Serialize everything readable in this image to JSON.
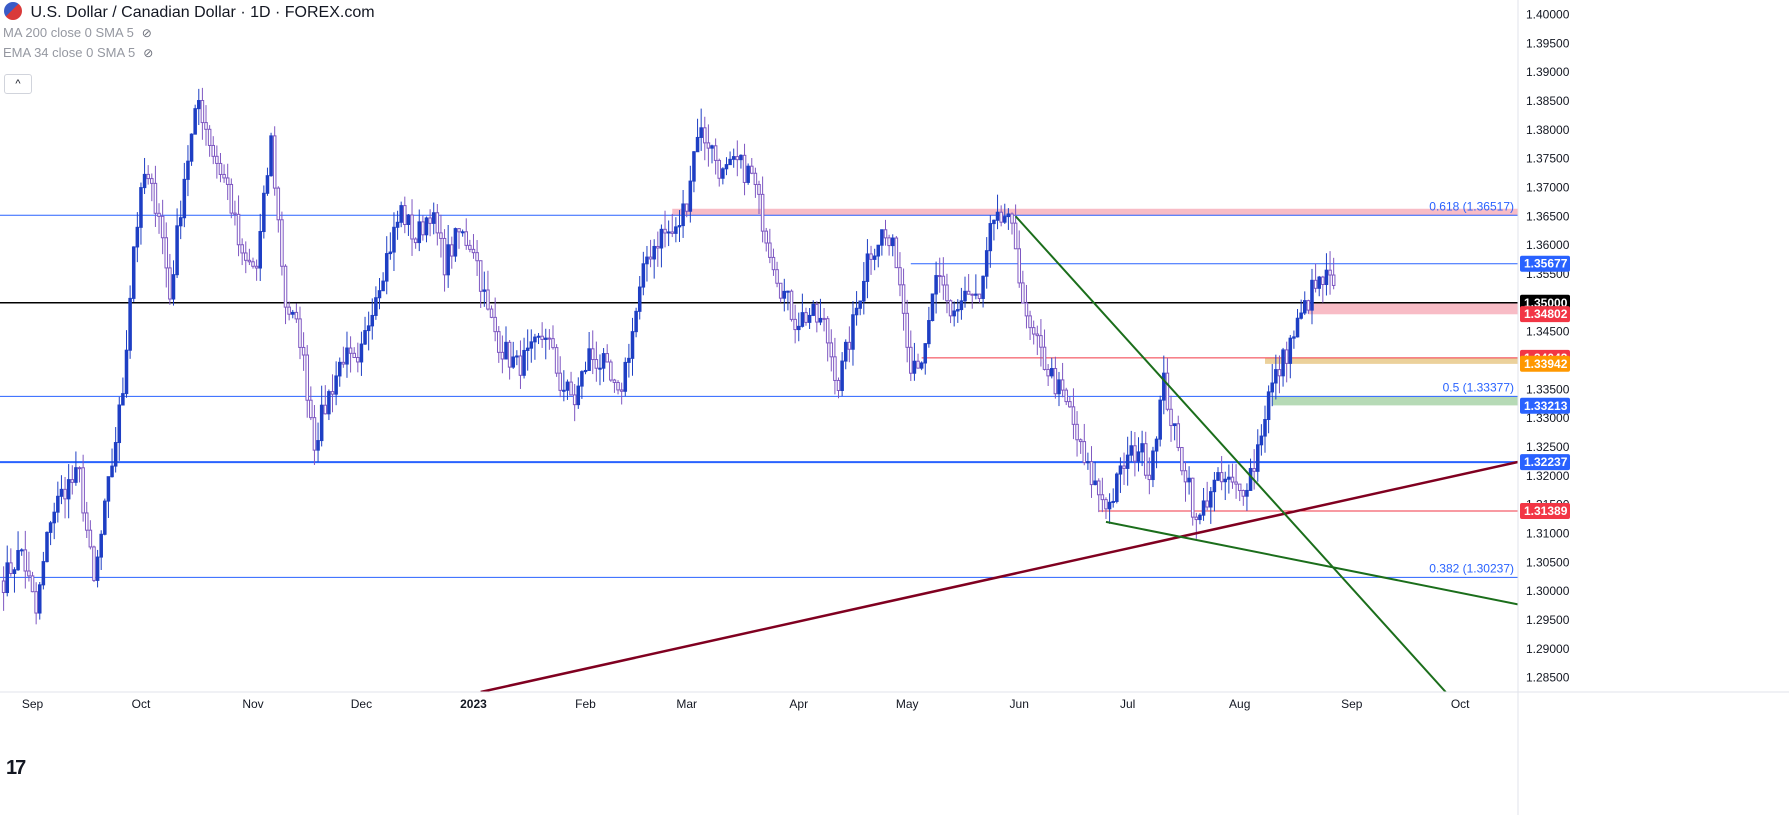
{
  "header": {
    "title": "U.S. Dollar / Canadian Dollar · 1D · FOREX.com",
    "indicators": [
      "MA 200 close 0 SMA 5",
      "EMA 34 close 0 SMA 5"
    ],
    "collapse_label": "^",
    "logo": "17"
  },
  "chart_data": {
    "type": "candlestick",
    "title": "U.S. Dollar / Canadian Dollar · 1D · FOREX.com",
    "ylim": [
      1.2825,
      1.4025
    ],
    "y_ticks": [
      "1.40000",
      "1.39500",
      "1.39000",
      "1.38500",
      "1.38000",
      "1.37500",
      "1.37000",
      "1.36500",
      "1.36000",
      "1.35500",
      "1.35000",
      "1.34500",
      "1.34000",
      "1.33500",
      "1.33000",
      "1.32500",
      "1.32000",
      "1.31500",
      "1.31000",
      "1.30500",
      "1.30000",
      "1.29500",
      "1.29000",
      "1.28500"
    ],
    "x_ticks": [
      {
        "label": "Sep",
        "day": 3
      },
      {
        "label": "Oct",
        "day": 33
      },
      {
        "label": "Nov",
        "day": 64
      },
      {
        "label": "Dec",
        "day": 94
      },
      {
        "label": "2023",
        "day": 125,
        "bold": true
      },
      {
        "label": "Feb",
        "day": 156
      },
      {
        "label": "Mar",
        "day": 184
      },
      {
        "label": "Apr",
        "day": 215
      },
      {
        "label": "May",
        "day": 245
      },
      {
        "label": "Jun",
        "day": 276
      },
      {
        "label": "Jul",
        "day": 306
      },
      {
        "label": "Aug",
        "day": 337
      },
      {
        "label": "Sep",
        "day": 368
      },
      {
        "label": "Oct",
        "day": 398
      }
    ],
    "x_domain": [
      -6,
      414
    ],
    "anchors": [
      {
        "day": -5,
        "price": 1.302
      },
      {
        "day": 0,
        "price": 1.307
      },
      {
        "day": 4,
        "price": 1.296
      },
      {
        "day": 8,
        "price": 1.313
      },
      {
        "day": 12,
        "price": 1.318
      },
      {
        "day": 16,
        "price": 1.32
      },
      {
        "day": 20,
        "price": 1.301
      },
      {
        "day": 24,
        "price": 1.318
      },
      {
        "day": 28,
        "price": 1.335
      },
      {
        "day": 31,
        "price": 1.36
      },
      {
        "day": 34,
        "price": 1.372
      },
      {
        "day": 38,
        "price": 1.366
      },
      {
        "day": 41,
        "price": 1.351
      },
      {
        "day": 45,
        "price": 1.372
      },
      {
        "day": 49,
        "price": 1.385
      },
      {
        "day": 53,
        "price": 1.376
      },
      {
        "day": 57,
        "price": 1.37
      },
      {
        "day": 61,
        "price": 1.357
      },
      {
        "day": 65,
        "price": 1.356
      },
      {
        "day": 69,
        "price": 1.378
      },
      {
        "day": 73,
        "price": 1.35
      },
      {
        "day": 77,
        "price": 1.344
      },
      {
        "day": 81,
        "price": 1.326
      },
      {
        "day": 85,
        "price": 1.334
      },
      {
        "day": 89,
        "price": 1.341
      },
      {
        "day": 93,
        "price": 1.338
      },
      {
        "day": 97,
        "price": 1.35
      },
      {
        "day": 101,
        "price": 1.358
      },
      {
        "day": 105,
        "price": 1.366
      },
      {
        "day": 109,
        "price": 1.361
      },
      {
        "day": 113,
        "price": 1.366
      },
      {
        "day": 117,
        "price": 1.357
      },
      {
        "day": 121,
        "price": 1.362
      },
      {
        "day": 125,
        "price": 1.36
      },
      {
        "day": 129,
        "price": 1.348
      },
      {
        "day": 133,
        "price": 1.342
      },
      {
        "day": 137,
        "price": 1.339
      },
      {
        "day": 141,
        "price": 1.341
      },
      {
        "day": 145,
        "price": 1.345
      },
      {
        "day": 149,
        "price": 1.336
      },
      {
        "day": 153,
        "price": 1.333
      },
      {
        "day": 157,
        "price": 1.341
      },
      {
        "day": 161,
        "price": 1.339
      },
      {
        "day": 165,
        "price": 1.333
      },
      {
        "day": 169,
        "price": 1.345
      },
      {
        "day": 173,
        "price": 1.358
      },
      {
        "day": 177,
        "price": 1.362
      },
      {
        "day": 181,
        "price": 1.362
      },
      {
        "day": 184,
        "price": 1.368
      },
      {
        "day": 187,
        "price": 1.38
      },
      {
        "day": 190,
        "price": 1.378
      },
      {
        "day": 194,
        "price": 1.372
      },
      {
        "day": 198,
        "price": 1.374
      },
      {
        "day": 202,
        "price": 1.372
      },
      {
        "day": 206,
        "price": 1.362
      },
      {
        "day": 210,
        "price": 1.353
      },
      {
        "day": 214,
        "price": 1.347
      },
      {
        "day": 218,
        "price": 1.348
      },
      {
        "day": 222,
        "price": 1.346
      },
      {
        "day": 226,
        "price": 1.336
      },
      {
        "day": 230,
        "price": 1.346
      },
      {
        "day": 234,
        "price": 1.358
      },
      {
        "day": 238,
        "price": 1.362
      },
      {
        "day": 242,
        "price": 1.358
      },
      {
        "day": 246,
        "price": 1.34
      },
      {
        "day": 250,
        "price": 1.341
      },
      {
        "day": 253,
        "price": 1.355
      },
      {
        "day": 257,
        "price": 1.347
      },
      {
        "day": 261,
        "price": 1.352
      },
      {
        "day": 265,
        "price": 1.35
      },
      {
        "day": 268,
        "price": 1.362
      },
      {
        "day": 272,
        "price": 1.365
      },
      {
        "day": 275,
        "price": 1.36
      },
      {
        "day": 278,
        "price": 1.346
      },
      {
        "day": 282,
        "price": 1.341
      },
      {
        "day": 286,
        "price": 1.336
      },
      {
        "day": 290,
        "price": 1.331
      },
      {
        "day": 294,
        "price": 1.322
      },
      {
        "day": 298,
        "price": 1.317
      },
      {
        "day": 301,
        "price": 1.315
      },
      {
        "day": 305,
        "price": 1.322
      },
      {
        "day": 309,
        "price": 1.325
      },
      {
        "day": 312,
        "price": 1.321
      },
      {
        "day": 316,
        "price": 1.336
      },
      {
        "day": 320,
        "price": 1.324
      },
      {
        "day": 323,
        "price": 1.319
      },
      {
        "day": 325,
        "price": 1.311
      },
      {
        "day": 329,
        "price": 1.318
      },
      {
        "day": 333,
        "price": 1.319
      },
      {
        "day": 337,
        "price": 1.317
      },
      {
        "day": 341,
        "price": 1.322
      },
      {
        "day": 345,
        "price": 1.334
      },
      {
        "day": 349,
        "price": 1.34
      },
      {
        "day": 353,
        "price": 1.346
      },
      {
        "day": 357,
        "price": 1.352
      },
      {
        "day": 361,
        "price": 1.354
      },
      {
        "day": 363,
        "price": 1.353
      }
    ],
    "horizontal_lines": [
      {
        "price": 1.36517,
        "color": "#2962ff",
        "width": 1,
        "from": "start"
      },
      {
        "price": 1.35677,
        "color": "#2962ff",
        "width": 1,
        "from_day": 246
      },
      {
        "price": 1.35,
        "color": "#000000",
        "width": 1.5,
        "from": "start"
      },
      {
        "price": 1.33377,
        "color": "#2962ff",
        "width": 1,
        "from": "start"
      },
      {
        "price": 1.32237,
        "color": "#2962ff",
        "width": 2,
        "from": "start"
      },
      {
        "price": 1.30237,
        "color": "#2962ff",
        "width": 1,
        "from": "start"
      },
      {
        "price": 1.34043,
        "color": "#f23645",
        "width": 1,
        "from_day": 249
      },
      {
        "price": 1.31389,
        "color": "#f23645",
        "width": 1,
        "from_day": 298
      }
    ],
    "zones": [
      {
        "top": 1.3663,
        "bottom": 1.3651,
        "from_day": 180,
        "color": "#f7b0bc"
      },
      {
        "top": 1.3499,
        "bottom": 1.348,
        "from_day": 356,
        "color": "#f7b0bc"
      },
      {
        "top": 1.3404,
        "bottom": 1.3394,
        "from_day": 344,
        "color": "#e7c989"
      },
      {
        "top": 1.3337,
        "bottom": 1.3322,
        "from_day": 346,
        "color": "#a9d4a9"
      }
    ],
    "fib_labels": [
      {
        "text": "0.618 (1.36517)",
        "price": 1.36517
      },
      {
        "text": "0.5 (1.33377)",
        "price": 1.33377
      },
      {
        "text": "0.382 (1.30237)",
        "price": 1.30237
      }
    ],
    "price_tags": [
      {
        "text": "1.35677",
        "price": 1.35677,
        "color": "#2962ff"
      },
      {
        "text": "1.35000",
        "price": 1.35,
        "color": "#000000"
      },
      {
        "text": "1.34802",
        "price": 1.34802,
        "color": "#f23645"
      },
      {
        "text": "1.34043",
        "price": 1.34043,
        "color": "#f23645"
      },
      {
        "text": "1.33942",
        "price": 1.33942,
        "color": "#ff9800"
      },
      {
        "text": "1.33213",
        "price": 1.33213,
        "color": "#2962ff"
      },
      {
        "text": "1.32237",
        "price": 1.32237,
        "color": "#2962ff"
      },
      {
        "text": "1.31389",
        "price": 1.31389,
        "color": "#f23645"
      }
    ],
    "trendlines": [
      {
        "from": {
          "day": 127,
          "price": 1.2825
        },
        "to": {
          "day": 414,
          "price": 1.3224
        },
        "color": "#800020",
        "width": 2.5
      },
      {
        "from": {
          "day": 275,
          "price": 1.365
        },
        "to": {
          "day": 394,
          "price": 1.2825
        },
        "color": "#1b6e1b",
        "width": 2
      },
      {
        "from": {
          "day": 300,
          "price": 1.312
        },
        "to": {
          "day": 414,
          "price": 1.2977
        },
        "color": "#1b6e1b",
        "width": 2
      }
    ]
  },
  "colors": {
    "bull": "#1e3fc4",
    "bear": "#ffffff",
    "bear_border": "#7e57c2",
    "wick": "#7e57c2",
    "axis_text": "#131722",
    "fib_text": "#2962ff"
  }
}
